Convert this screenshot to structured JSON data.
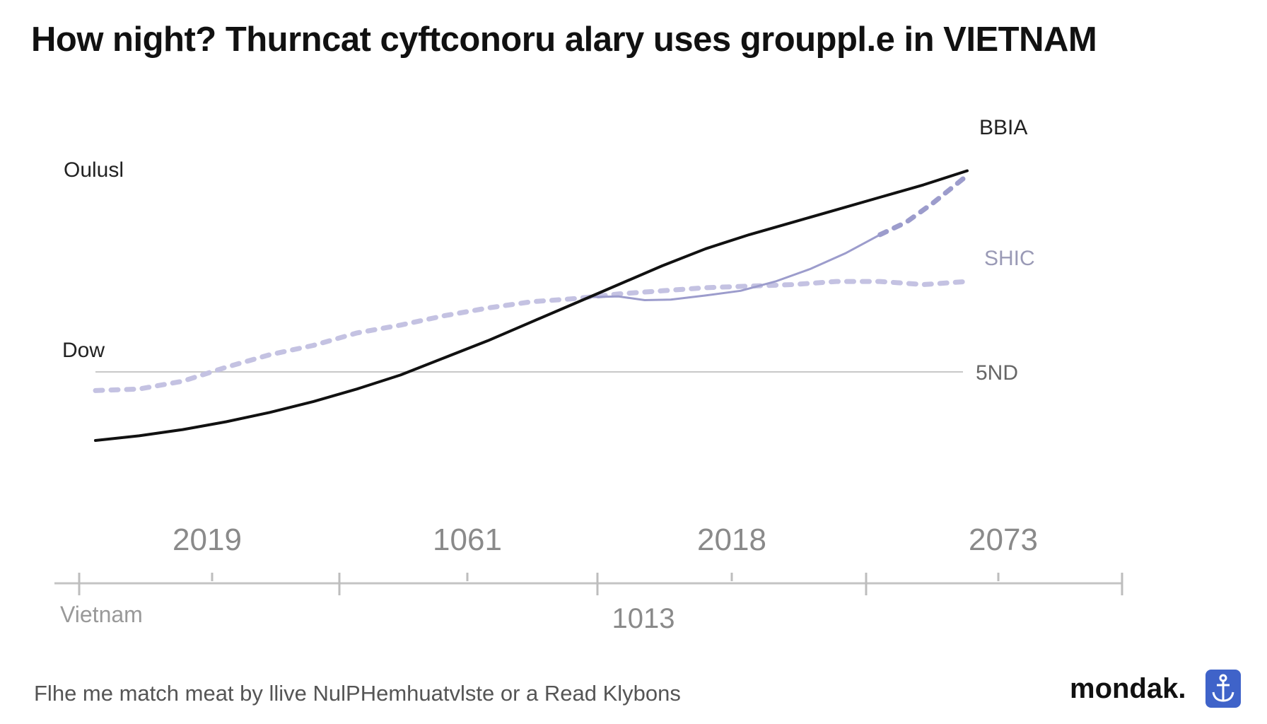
{
  "title": "How night? Thurncat cyftconoru alary uses grouppl.e in VIETNAM",
  "footer": {
    "source": "Flhe me match meat by llive NulPHemhuatvlste or a Read Klybons",
    "brand": "mondak.",
    "brand_icon": "anchor-icon",
    "brand_color": "#3f63c9"
  },
  "chart_data": {
    "type": "line",
    "title": "How night? Thurncat cyftconoru alary uses grouppl.e in VIETNAM",
    "x_categories": [
      "2019",
      "1061",
      "2018",
      "2073"
    ],
    "x_sublabels": [
      "Vietnam",
      "1013"
    ],
    "y_labels": [
      "Oulusl",
      "Dow"
    ],
    "xlim": [
      0,
      1
    ],
    "ylim": [
      0,
      1
    ],
    "grid": false,
    "reference_line": {
      "label": "5ND",
      "value": 0.22
    },
    "series": [
      {
        "name": "BBIA",
        "color": "#111111",
        "style": "solid",
        "x": [
          0,
          0.05,
          0.1,
          0.15,
          0.2,
          0.25,
          0.3,
          0.35,
          0.4,
          0.45,
          0.5,
          0.55,
          0.6,
          0.65,
          0.7,
          0.75,
          0.8,
          0.85,
          0.9,
          0.95,
          1.0
        ],
        "y": [
          0.0,
          0.015,
          0.035,
          0.06,
          0.09,
          0.125,
          0.165,
          0.21,
          0.265,
          0.32,
          0.38,
          0.44,
          0.5,
          0.56,
          0.615,
          0.66,
          0.7,
          0.74,
          0.78,
          0.82,
          0.865
        ]
      },
      {
        "name": "SHIC",
        "color": "#c4c2e2",
        "style": "dotted",
        "x": [
          0,
          0.05,
          0.1,
          0.15,
          0.2,
          0.25,
          0.3,
          0.35,
          0.4,
          0.45,
          0.5,
          0.55,
          0.6,
          0.65,
          0.7,
          0.75,
          0.8,
          0.85,
          0.9,
          0.95,
          1.0
        ],
        "y": [
          0.16,
          0.165,
          0.19,
          0.235,
          0.275,
          0.305,
          0.345,
          0.37,
          0.4,
          0.425,
          0.445,
          0.455,
          0.47,
          0.48,
          0.49,
          0.495,
          0.5,
          0.51,
          0.51,
          0.5,
          0.51
        ]
      },
      {
        "name": "",
        "color": "#9c9ccc",
        "style": "solid-then-dotted",
        "x": [
          0.57,
          0.6,
          0.63,
          0.66,
          0.7,
          0.74,
          0.78,
          0.82,
          0.86,
          0.9,
          0.93,
          0.96,
          1.0
        ],
        "y": [
          0.46,
          0.462,
          0.45,
          0.452,
          0.465,
          0.48,
          0.51,
          0.55,
          0.6,
          0.66,
          0.7,
          0.76,
          0.85
        ]
      }
    ]
  }
}
